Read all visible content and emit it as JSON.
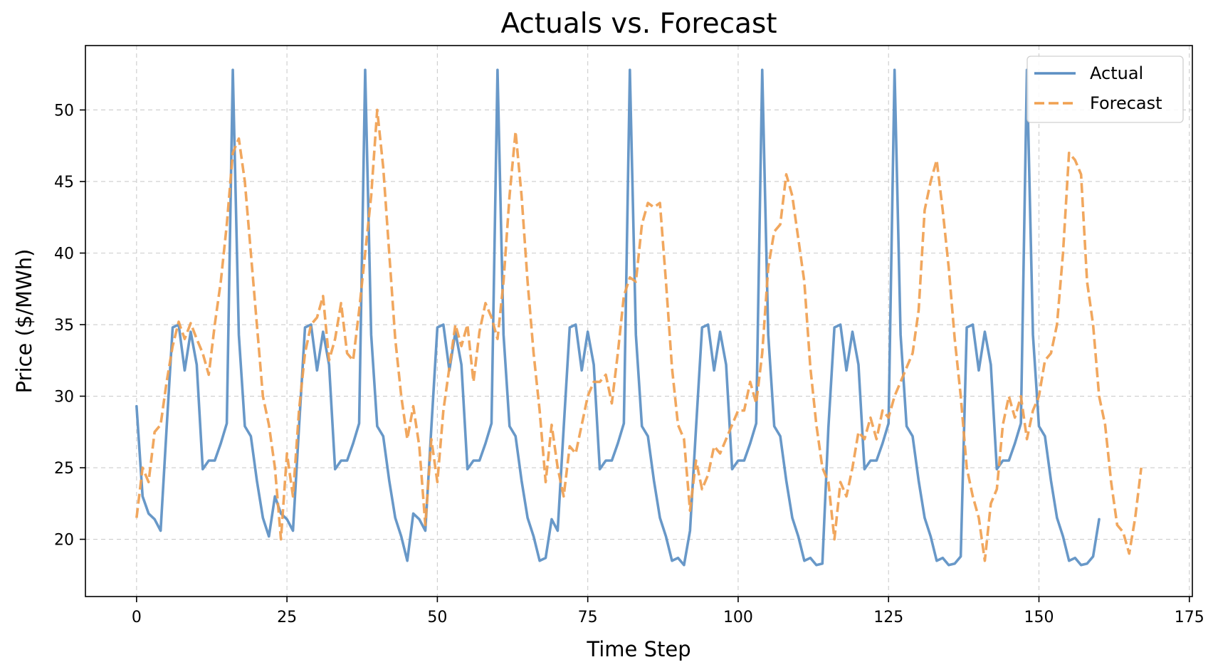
{
  "chart_data": {
    "type": "line",
    "title": "Actuals vs. Forecast",
    "xlabel": "Time Step",
    "ylabel": "Price ($/MWh)",
    "xlim": [
      -8.5,
      175.5
    ],
    "ylim": [
      16.0,
      54.5
    ],
    "xticks": [
      0,
      25,
      50,
      75,
      100,
      125,
      150,
      175
    ],
    "yticks": [
      20,
      25,
      30,
      35,
      40,
      45,
      50
    ],
    "grid": true,
    "legend_position": "top-right",
    "series": [
      {
        "name": "Actual",
        "color": "#5b8fc3",
        "style": "solid",
        "values": [
          29.3,
          23.0,
          21.8,
          21.4,
          20.6,
          27.8,
          34.8,
          35.0,
          31.8,
          34.5,
          32.2,
          24.9,
          25.5,
          25.5,
          26.7,
          28.1,
          52.8,
          34.3,
          27.9,
          27.2,
          24.1,
          21.5,
          20.2,
          23.0,
          21.8,
          21.4,
          20.6,
          27.8,
          34.8,
          35.0,
          31.8,
          34.5,
          32.2,
          24.9,
          25.5,
          25.5,
          26.7,
          28.1,
          52.8,
          34.3,
          27.9,
          27.2,
          24.1,
          21.5,
          20.2,
          18.5,
          21.8,
          21.4,
          20.6,
          27.8,
          34.8,
          35.0,
          31.8,
          34.5,
          32.2,
          24.9,
          25.5,
          25.5,
          26.7,
          28.1,
          52.8,
          34.3,
          27.9,
          27.2,
          24.1,
          21.5,
          20.2,
          18.5,
          18.7,
          21.4,
          20.6,
          27.8,
          34.8,
          35.0,
          31.8,
          34.5,
          32.2,
          24.9,
          25.5,
          25.5,
          26.7,
          28.1,
          52.8,
          34.3,
          27.9,
          27.2,
          24.1,
          21.5,
          20.2,
          18.5,
          18.7,
          18.2,
          20.6,
          27.8,
          34.8,
          35.0,
          31.8,
          34.5,
          32.2,
          24.9,
          25.5,
          25.5,
          26.7,
          28.1,
          52.8,
          34.3,
          27.9,
          27.2,
          24.1,
          21.5,
          20.2,
          18.5,
          18.7,
          18.2,
          18.3,
          27.8,
          34.8,
          35.0,
          31.8,
          34.5,
          32.2,
          24.9,
          25.5,
          25.5,
          26.7,
          28.1,
          52.8,
          34.3,
          27.9,
          27.2,
          24.1,
          21.5,
          20.2,
          18.5,
          18.7,
          18.2,
          18.3,
          18.8,
          34.8,
          35.0,
          31.8,
          34.5,
          32.2,
          24.9,
          25.5,
          25.5,
          26.7,
          28.1,
          52.8,
          34.3,
          27.9,
          27.2,
          24.1,
          21.5,
          20.2,
          18.5,
          18.7,
          18.2,
          18.3,
          18.8,
          21.4
        ]
      },
      {
        "name": "Forecast",
        "color": "#f0a050",
        "style": "dashed",
        "values": [
          21.5,
          25.0,
          24.0,
          27.5,
          28.0,
          31.0,
          33.5,
          35.2,
          34.0,
          35.1,
          34.0,
          33.0,
          31.5,
          35.0,
          38.0,
          42.0,
          47.0,
          48.0,
          45.0,
          40.0,
          35.0,
          30.0,
          28.0,
          25.0,
          20.0,
          26.0,
          23.0,
          29.0,
          33.0,
          35.0,
          35.5,
          37.0,
          32.5,
          34.0,
          36.5,
          33.0,
          32.5,
          36.0,
          40.0,
          44.0,
          50.0,
          46.0,
          40.0,
          34.0,
          30.0,
          27.0,
          29.3,
          26.5,
          21.0,
          27.0,
          24.0,
          29.0,
          32.0,
          35.0,
          33.5,
          35.0,
          31.0,
          34.5,
          36.5,
          35.5,
          34.0,
          38.0,
          44.0,
          48.5,
          44.0,
          38.0,
          33.0,
          29.0,
          24.0,
          28.0,
          25.0,
          23.0,
          26.5,
          26.0,
          28.0,
          30.0,
          31.0,
          31.0,
          31.5,
          29.5,
          33.0,
          37.0,
          38.3,
          38.0,
          42.0,
          43.5,
          43.2,
          43.5,
          38.0,
          32.0,
          28.0,
          27.0,
          22.0,
          25.5,
          23.5,
          24.5,
          26.5,
          26.0,
          27.0,
          28.0,
          29.0,
          29.0,
          31.0,
          29.5,
          33.0,
          39.0,
          41.5,
          42.0,
          45.5,
          44.0,
          41.0,
          38.0,
          32.0,
          28.0,
          25.0,
          24.0,
          20.0,
          24.0,
          23.0,
          25.0,
          27.5,
          27.0,
          28.5,
          27.0,
          29.0,
          28.5,
          30.0,
          31.0,
          32.0,
          33.0,
          36.0,
          43.0,
          45.0,
          46.5,
          43.0,
          39.0,
          34.0,
          30.0,
          25.0,
          23.0,
          21.5,
          18.5,
          22.5,
          23.5,
          28.0,
          30.0,
          28.5,
          30.0,
          27.0,
          29.0,
          30.0,
          32.5,
          33.0,
          35.0,
          40.0,
          47.0,
          46.5,
          45.5,
          38.0,
          35.0,
          30.0,
          28.0,
          24.0,
          21.0,
          20.5,
          19.0,
          21.5,
          25.0
        ]
      }
    ]
  }
}
